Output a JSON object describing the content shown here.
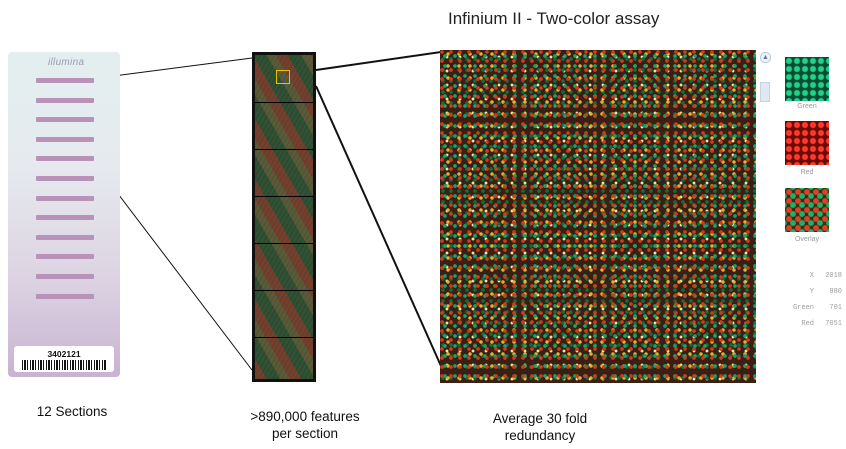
{
  "title": "Infinium II - Two-color assay",
  "chip": {
    "brand": "illumina",
    "id": "3402121",
    "section_count": 12
  },
  "swatches": [
    {
      "label": "Green"
    },
    {
      "label": "Red"
    },
    {
      "label": "Overlay"
    }
  ],
  "stats": [
    {
      "key": "X",
      "value": "2018"
    },
    {
      "key": "Y",
      "value": "880"
    },
    {
      "key": "Green",
      "value": "701"
    },
    {
      "key": "Red",
      "value": "7051"
    }
  ],
  "captions": {
    "chip": "12 Sections",
    "strip_line1": ">890,000 features",
    "strip_line2": "per section",
    "main_line1": "Average 30 fold",
    "main_line2": "redundancy"
  },
  "colors": {
    "section_bar": "#b892b8",
    "highlight_box": "#e8c200",
    "bead_red": "#d23a1a",
    "bead_green": "#18a36a",
    "bead_yellow": "#e6b02a"
  }
}
